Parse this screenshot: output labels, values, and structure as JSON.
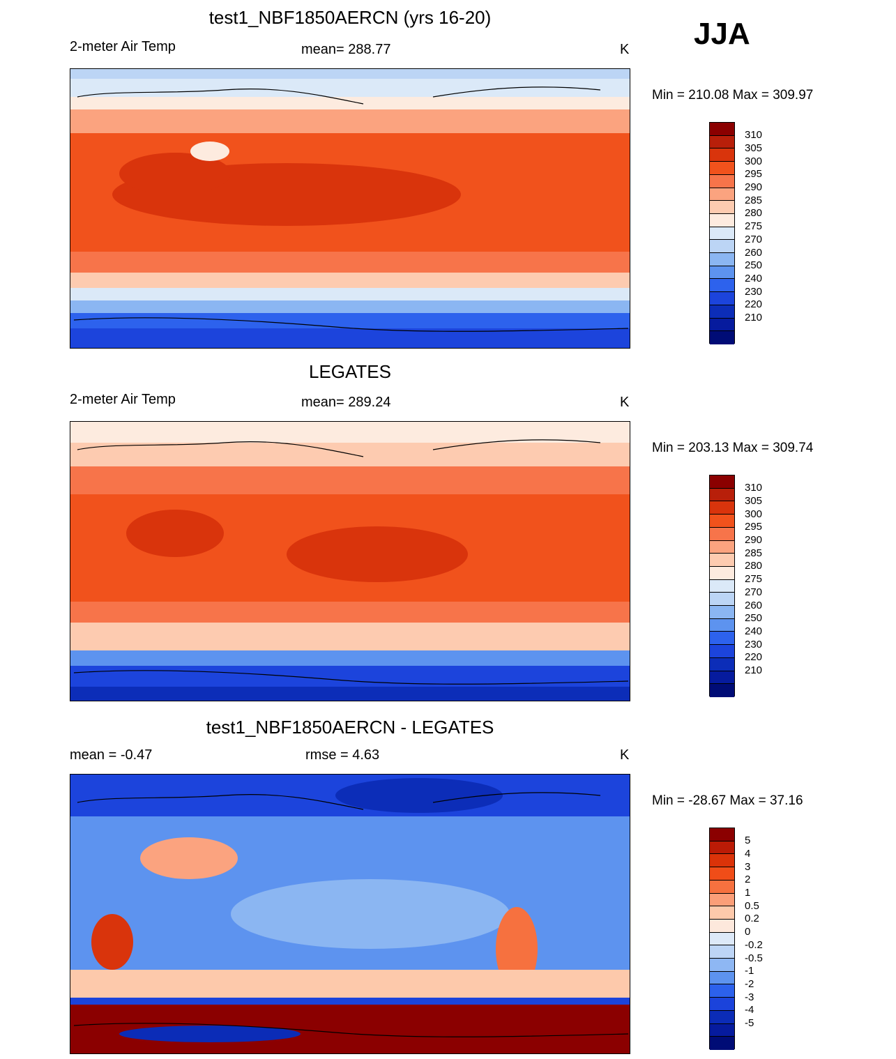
{
  "season": "JJA",
  "palette_abs": [
    "#8b0000",
    "#b81f0a",
    "#d9340c",
    "#f1521c",
    "#f7744a",
    "#fba37f",
    "#fdcbb0",
    "#fdebdf",
    "#dbe9f8",
    "#bcd5f5",
    "#8bb6f2",
    "#5d93ef",
    "#2d62ed",
    "#1c44dc",
    "#0c2db8",
    "#061b9e",
    "#000c76"
  ],
  "palette_diff": [
    "#8b0000",
    "#bb1b06",
    "#db3309",
    "#f04d18",
    "#f6713f",
    "#fb9e78",
    "#fdc9ab",
    "#fde8dc",
    "#dde9f8",
    "#bdd5f6",
    "#8eb7f3",
    "#5d93ef",
    "#2c61ec",
    "#1b43db",
    "#0b2cb7",
    "#061b9e",
    "#000c76"
  ],
  "chart_data": [
    {
      "type": "heatmap",
      "title": "test1_NBF1850AERCN (yrs 16-20)",
      "left_label": "2-meter Air Temp",
      "mean_text": "mean= 288.77",
      "units": "K",
      "minmax": "Min = 210.08 Max = 309.97",
      "levels": [
        "310",
        "305",
        "300",
        "295",
        "290",
        "285",
        "280",
        "275",
        "270",
        "260",
        "250",
        "240",
        "230",
        "220",
        "210"
      ]
    },
    {
      "type": "heatmap",
      "title": "LEGATES",
      "left_label": "2-meter Air Temp",
      "mean_text": "mean= 289.24",
      "units": "K",
      "minmax": "Min = 203.13 Max = 309.74",
      "levels": [
        "310",
        "305",
        "300",
        "295",
        "290",
        "285",
        "280",
        "275",
        "270",
        "260",
        "250",
        "240",
        "230",
        "220",
        "210"
      ]
    },
    {
      "type": "heatmap",
      "title": "test1_NBF1850AERCN - LEGATES",
      "left_label": "mean =  -0.47",
      "mean_text": "rmse =   4.63",
      "units": "K",
      "minmax": "Min = -28.67 Max =  37.16",
      "levels": [
        "5",
        "4",
        "3",
        "2",
        "1",
        "0.5",
        "0.2",
        "0",
        "-0.2",
        "-0.5",
        "-1",
        "-2",
        "-3",
        "-4",
        "-5"
      ]
    }
  ]
}
